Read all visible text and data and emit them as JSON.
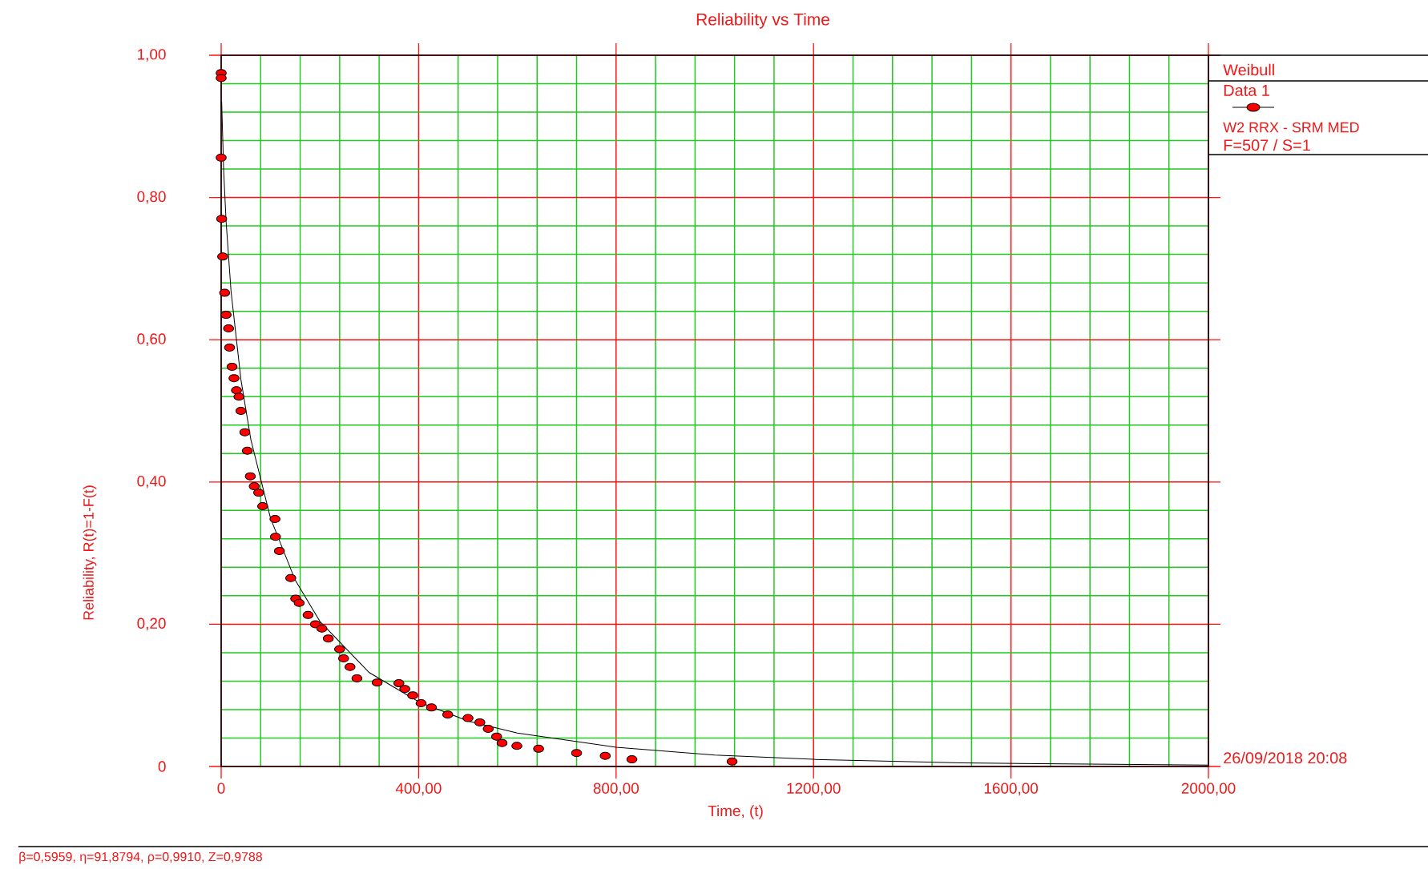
{
  "chart_data": {
    "type": "scatter",
    "title": "Reliability vs Time",
    "xlabel": "Time, (t)",
    "ylabel": "Reliability, R(t)=1-F(t)",
    "legend_title": "Weibull",
    "annotations": [
      "W2 RRX - SRM MED",
      "F=507 / S=1",
      "26/09/2018 20:08",
      "β=0,5959, η=91,8794, ρ=0,9910, Z=0,9788"
    ],
    "xlim": [
      0,
      2000
    ],
    "ylim": [
      0,
      1
    ],
    "xticks": [
      0,
      {
        "value": 80,
        "label": null
      },
      {
        "value": 160,
        "label": null
      },
      {
        "value": 240,
        "label": null
      },
      {
        "value": 320,
        "label": null
      },
      {
        "value": 400,
        "label": "400,00"
      },
      {
        "value": 480,
        "label": null
      },
      {
        "value": 560,
        "label": null
      },
      {
        "value": 640,
        "label": null
      },
      {
        "value": 720,
        "label": null
      },
      {
        "value": 800,
        "label": "800,00"
      },
      {
        "value": 880,
        "label": null
      },
      {
        "value": 960,
        "label": null
      },
      {
        "value": 1040,
        "label": null
      },
      {
        "value": 1120,
        "label": null
      },
      {
        "value": 1200,
        "label": "1200,00"
      },
      {
        "value": 1280,
        "label": null
      },
      {
        "value": 1360,
        "label": null
      },
      {
        "value": 1440,
        "label": null
      },
      {
        "value": 1520,
        "label": null
      },
      {
        "value": 1600,
        "label": "1600,00"
      },
      {
        "value": 1680,
        "label": null
      },
      {
        "value": 1760,
        "label": null
      },
      {
        "value": 1840,
        "label": null
      },
      {
        "value": 1920,
        "label": null
      },
      {
        "value": 2000,
        "label": "2000,00"
      }
    ],
    "yticks": [
      0,
      {
        "value": 0.04,
        "label": null
      },
      {
        "value": 0.08,
        "label": null
      },
      {
        "value": 0.12,
        "label": null
      },
      {
        "value": 0.16,
        "label": null
      },
      {
        "value": 0.2,
        "label": "0,20"
      },
      {
        "value": 0.24,
        "label": null
      },
      {
        "value": 0.28,
        "label": null
      },
      {
        "value": 0.32,
        "label": null
      },
      {
        "value": 0.36,
        "label": null
      },
      {
        "value": 0.4,
        "label": "0,40"
      },
      {
        "value": 0.44,
        "label": null
      },
      {
        "value": 0.48,
        "label": null
      },
      {
        "value": 0.52,
        "label": null
      },
      {
        "value": 0.56,
        "label": null
      },
      {
        "value": 0.6,
        "label": "0,60"
      },
      {
        "value": 0.64,
        "label": null
      },
      {
        "value": 0.68,
        "label": null
      },
      {
        "value": 0.72,
        "label": null
      },
      {
        "value": 0.76,
        "label": null
      },
      {
        "value": 0.8,
        "label": "0,80"
      },
      {
        "value": 0.84,
        "label": null
      },
      {
        "value": 0.88,
        "label": null
      },
      {
        "value": 0.92,
        "label": null
      },
      {
        "value": 0.96,
        "label": null
      },
      {
        "value": 1,
        "label": "1,00"
      }
    ],
    "grid": true,
    "legend": "right",
    "marker": "circle",
    "series": [
      {
        "name": "Data 1",
        "type": "scatter",
        "color": "#ff0000",
        "x": [
          0,
          0,
          0,
          1,
          3,
          7,
          10,
          15,
          17,
          22,
          26,
          31,
          36,
          40,
          48,
          53,
          59,
          67,
          76,
          84,
          109,
          110,
          118,
          141,
          151,
          158,
          176,
          191,
          204,
          217,
          240,
          248,
          261,
          275,
          316,
          360,
          372,
          388,
          405,
          426,
          459,
          500,
          524,
          541,
          558,
          569,
          599,
          643,
          720,
          778,
          832,
          1035
        ],
        "values": [
          0.975,
          0.968,
          0.856,
          0.77,
          0.717,
          0.666,
          0.635,
          0.616,
          0.589,
          0.562,
          0.546,
          0.529,
          0.52,
          0.5,
          0.47,
          0.444,
          0.408,
          0.394,
          0.385,
          0.366,
          0.348,
          0.323,
          0.303,
          0.265,
          0.236,
          0.23,
          0.213,
          0.2,
          0.194,
          0.18,
          0.165,
          0.152,
          0.14,
          0.124,
          0.118,
          0.117,
          0.109,
          0.1,
          0.089,
          0.083,
          0.073,
          0.068,
          0.062,
          0.053,
          0.042,
          0.033,
          0.029,
          0.025,
          0.019,
          0.015,
          0.01,
          0.007
        ]
      },
      {
        "type": "line",
        "color": "#000000",
        "marker": "none",
        "line_style": "solid",
        "x": [
          1,
          5,
          10,
          20,
          40,
          60,
          100,
          150,
          200,
          300,
          400,
          500,
          600,
          800,
          1000,
          1200,
          1500,
          2000
        ],
        "values": [
          0.935,
          0.838,
          0.766,
          0.668,
          0.544,
          0.46,
          0.349,
          0.262,
          0.204,
          0.132,
          0.091,
          0.064,
          0.047,
          0.027,
          0.016,
          0.01,
          0.005,
          0.002
        ]
      }
    ]
  }
}
